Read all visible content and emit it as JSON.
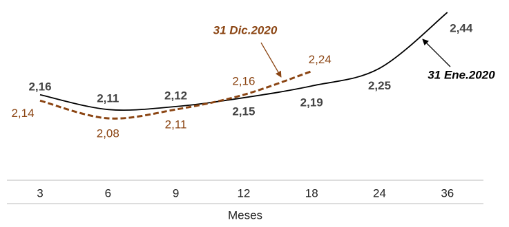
{
  "chart_data": {
    "type": "line",
    "x_label": "Meses",
    "categories": [
      "3",
      "6",
      "9",
      "12",
      "18",
      "24",
      "36"
    ],
    "series": [
      {
        "name": "31 Ene.2020",
        "color": "#000000",
        "style": "solid",
        "values": [
          2.16,
          2.11,
          2.12,
          2.15,
          2.19,
          2.25,
          2.44
        ],
        "value_labels": [
          "2,16",
          "2,11",
          "2,12",
          "2,15",
          "2,19",
          "2,25",
          "2,44"
        ]
      },
      {
        "name": "31 Dic.2020",
        "color": "#8b4513",
        "style": "dashed",
        "values": [
          2.14,
          2.08,
          2.11,
          2.16,
          2.24,
          null,
          null
        ],
        "value_labels": [
          "2,14",
          "2,08",
          "2,11",
          "2,16",
          "2,24",
          null,
          null
        ]
      }
    ]
  }
}
